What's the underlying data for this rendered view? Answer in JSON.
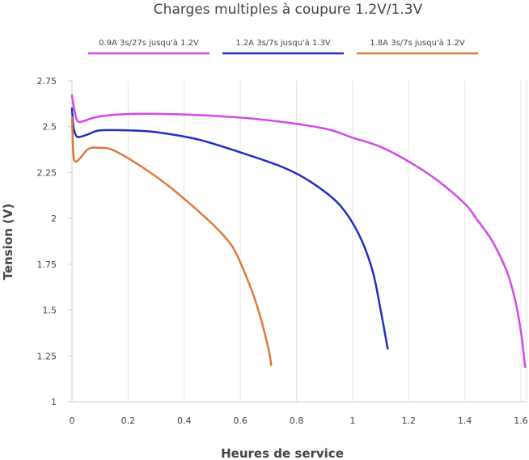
{
  "chart_data": {
    "type": "line",
    "title": "Charges multiples à coupure 1.2V/1.3V",
    "xlabel": "Heures de service",
    "ylabel": "Tension (V)",
    "xlim": [
      0,
      1.62
    ],
    "ylim": [
      1,
      2.75
    ],
    "xticks": [
      "0",
      "0.2",
      "0.4",
      "0.6",
      "0.8",
      "1",
      "1.2",
      "1.4",
      "1.6"
    ],
    "yticks": [
      "1",
      "1.25",
      "1.5",
      "1.75",
      "2",
      "2.25",
      "2.5",
      "2.75"
    ],
    "grid": "vertical",
    "legend_position": "top",
    "series": [
      {
        "name": "0.9A 3s/27s jusqu'à 1.2V",
        "color": "#d447ea",
        "points": [
          [
            0,
            2.67
          ],
          [
            0.01,
            2.58
          ],
          [
            0.02,
            2.53
          ],
          [
            0.04,
            2.53
          ],
          [
            0.08,
            2.55
          ],
          [
            0.15,
            2.565
          ],
          [
            0.3,
            2.57
          ],
          [
            0.5,
            2.56
          ],
          [
            0.7,
            2.535
          ],
          [
            0.9,
            2.49
          ],
          [
            1.0,
            2.44
          ],
          [
            1.1,
            2.39
          ],
          [
            1.2,
            2.31
          ],
          [
            1.3,
            2.21
          ],
          [
            1.4,
            2.08
          ],
          [
            1.44,
            2.0
          ],
          [
            1.46,
            1.96
          ],
          [
            1.5,
            1.87
          ],
          [
            1.55,
            1.71
          ],
          [
            1.58,
            1.55
          ],
          [
            1.6,
            1.38
          ],
          [
            1.615,
            1.19
          ]
        ]
      },
      {
        "name": "1.2A 3s/7s jusqu'à 1.3V",
        "color": "#1c2fc2",
        "points": [
          [
            0,
            2.6
          ],
          [
            0.005,
            2.5
          ],
          [
            0.015,
            2.45
          ],
          [
            0.03,
            2.445
          ],
          [
            0.06,
            2.46
          ],
          [
            0.1,
            2.48
          ],
          [
            0.2,
            2.48
          ],
          [
            0.3,
            2.47
          ],
          [
            0.45,
            2.43
          ],
          [
            0.6,
            2.36
          ],
          [
            0.75,
            2.28
          ],
          [
            0.85,
            2.2
          ],
          [
            0.95,
            2.08
          ],
          [
            1.02,
            1.92
          ],
          [
            1.07,
            1.72
          ],
          [
            1.1,
            1.5
          ],
          [
            1.125,
            1.29
          ]
        ]
      },
      {
        "name": "1.8A 3s/7s jusqu'à 1.2V",
        "color": "#e07838",
        "points": [
          [
            0,
            2.55
          ],
          [
            0.005,
            2.35
          ],
          [
            0.012,
            2.31
          ],
          [
            0.03,
            2.33
          ],
          [
            0.06,
            2.38
          ],
          [
            0.1,
            2.385
          ],
          [
            0.15,
            2.37
          ],
          [
            0.25,
            2.28
          ],
          [
            0.35,
            2.17
          ],
          [
            0.45,
            2.04
          ],
          [
            0.52,
            1.94
          ],
          [
            0.57,
            1.85
          ],
          [
            0.6,
            1.76
          ],
          [
            0.64,
            1.61
          ],
          [
            0.67,
            1.47
          ],
          [
            0.7,
            1.29
          ],
          [
            0.71,
            1.2
          ]
        ]
      }
    ]
  }
}
